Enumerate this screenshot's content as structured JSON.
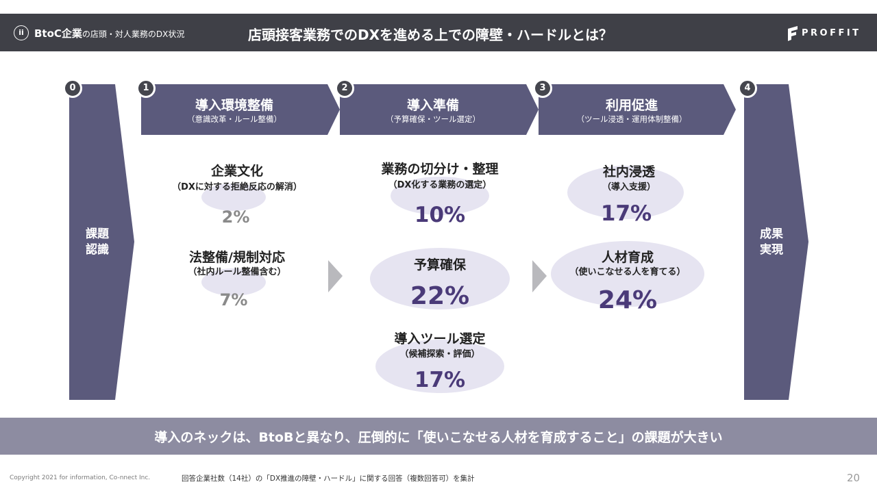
{
  "header": {
    "badge": "ii",
    "section_main": "BtoC企業",
    "section_sub": "の店頭・対人業務のDX状況",
    "title": "店頭接客業務でのDXを進める上での障壁・ハードルとは？",
    "logo": "PROFFIT"
  },
  "colors": {
    "header_bg": "#3f4047",
    "step_fill": "#5b5a7c",
    "ellipse_fill": "#e6e4f1",
    "accent_text": "#4a3a78",
    "footer_bar": "#8d8ca1"
  },
  "stages": {
    "start": {
      "number": "0",
      "label_line1": "課題",
      "label_line2": "認識"
    },
    "steps": [
      {
        "number": "1",
        "title": "導入環境整備",
        "subtitle": "（意識改革・ルール整備）"
      },
      {
        "number": "2",
        "title": "導入準備",
        "subtitle": "（予算確保・ツール選定）"
      },
      {
        "number": "3",
        "title": "利用促進",
        "subtitle": "（ツール浸透・運用体制整備）"
      }
    ],
    "end": {
      "number": "4",
      "label_line1": "成果",
      "label_line2": "実現"
    }
  },
  "items": {
    "step1": [
      {
        "title": "企業文化",
        "subtitle": "（DXに対する拒絶反応の解消）",
        "percent": "2%"
      },
      {
        "title": "法整備/規制対応",
        "subtitle": "（社内ルール整備含む）",
        "percent": "7%"
      }
    ],
    "step2": [
      {
        "title": "業務の切分け・整理",
        "subtitle": "（DX化する業務の選定）",
        "percent": "10%"
      },
      {
        "title": "予算確保",
        "subtitle": "",
        "percent": "22%"
      },
      {
        "title": "導入ツール選定",
        "subtitle": "（候補探索・評価）",
        "percent": "17%"
      }
    ],
    "step3": [
      {
        "title": "社内浸透",
        "subtitle": "（導入支援）",
        "percent": "17%"
      },
      {
        "title": "人材育成",
        "subtitle": "（使いこなせる人を育てる）",
        "percent": "24%"
      }
    ]
  },
  "footer": {
    "message": "導入のネックは、BtoBと異なり、圧倒的に「使いこなせる人材を育成すること」の課題が大きい",
    "copyright": "Copyright 2021 for information, Co-nnect Inc.",
    "footnote": "回答企業社数（14社）の「DX推進の障壁・ハードル」に関する回答（複数回答可）を集計",
    "page_number": "20"
  }
}
